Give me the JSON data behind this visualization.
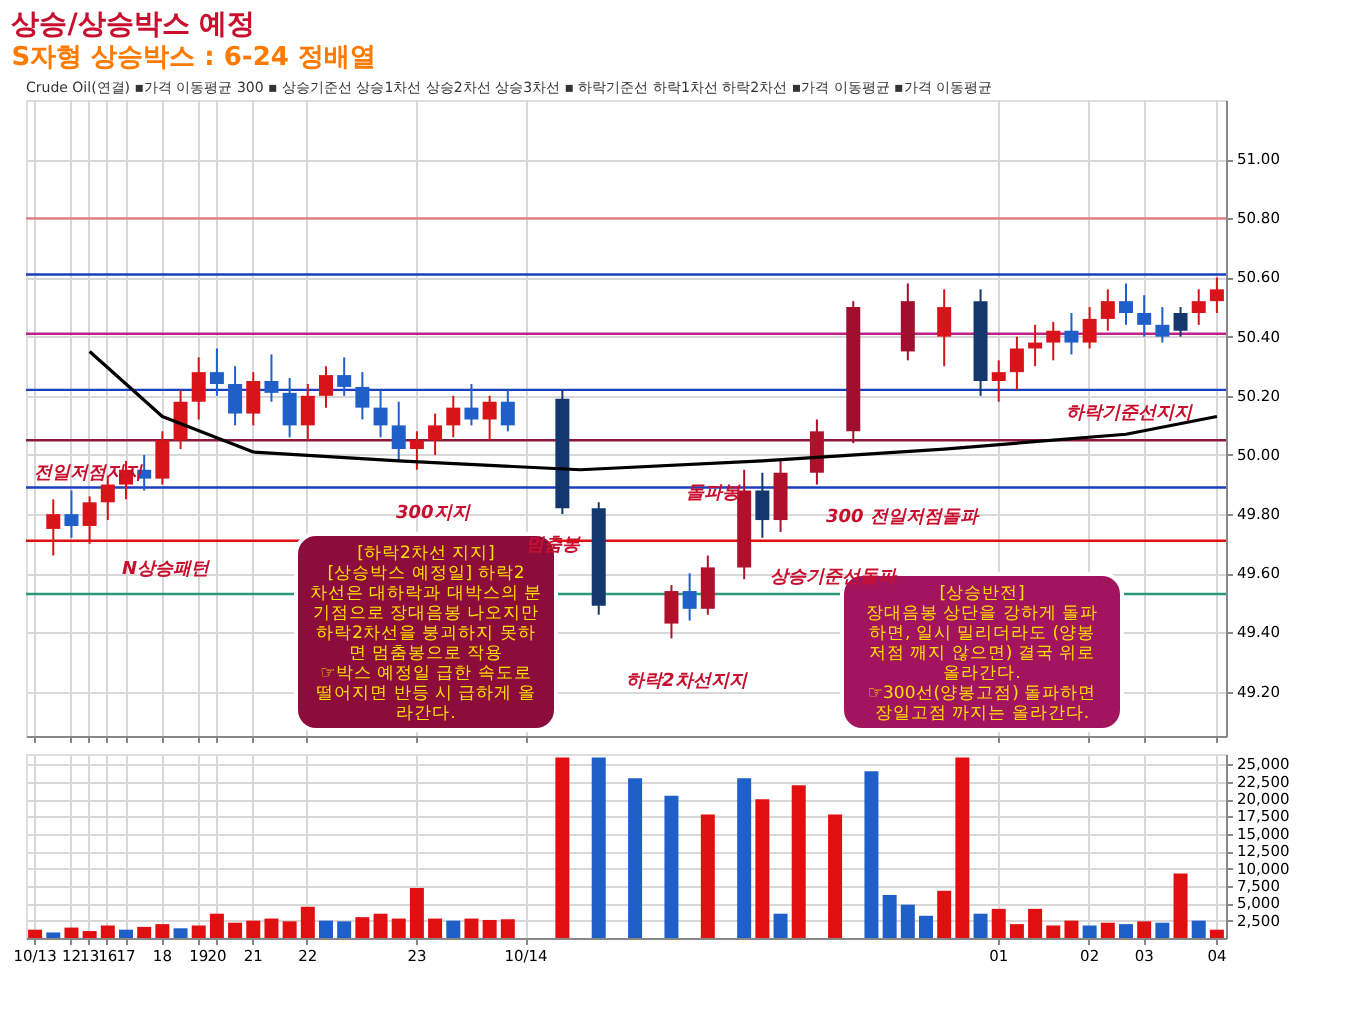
{
  "chart_data": [
    {
      "type": "candlestick",
      "title": "상승/상승박스 예정",
      "subtitle": "S자형 상승박스 : 6-24 정배열",
      "categories": [
        null,
        null,
        null,
        null,
        null,
        null,
        null,
        null,
        null,
        null,
        null,
        null,
        null,
        null,
        null,
        null,
        null,
        null,
        null,
        null,
        null,
        null,
        null,
        null,
        null,
        null,
        null,
        null,
        null,
        null,
        null,
        null,
        null,
        null,
        null,
        null,
        null,
        null,
        null,
        null,
        null,
        null,
        null,
        null,
        null,
        null,
        null,
        null,
        null,
        null,
        null,
        null,
        null,
        null,
        null,
        null,
        null,
        null,
        null,
        null,
        null,
        null,
        null,
        null,
        null,
        null
      ],
      "ohlc": [
        null,
        [
          49.75,
          49.85,
          49.66,
          49.8
        ],
        [
          49.8,
          49.88,
          49.72,
          49.76
        ],
        [
          49.76,
          49.86,
          49.7,
          49.84
        ],
        [
          49.84,
          49.93,
          49.78,
          49.9
        ],
        [
          49.9,
          49.98,
          49.85,
          49.95
        ],
        [
          49.95,
          50.0,
          49.88,
          49.92
        ],
        [
          49.92,
          50.08,
          49.9,
          50.05
        ],
        [
          50.05,
          50.22,
          50.02,
          50.18
        ],
        [
          50.18,
          50.33,
          50.12,
          50.28
        ],
        [
          50.28,
          50.36,
          50.2,
          50.24
        ],
        [
          50.24,
          50.3,
          50.1,
          50.14
        ],
        [
          50.14,
          50.28,
          50.1,
          50.25
        ],
        [
          50.25,
          50.34,
          50.18,
          50.21
        ],
        [
          50.21,
          50.26,
          50.06,
          50.1
        ],
        [
          50.1,
          50.24,
          50.05,
          50.2
        ],
        [
          50.2,
          50.3,
          50.16,
          50.27
        ],
        [
          50.27,
          50.33,
          50.2,
          50.23
        ],
        [
          50.23,
          50.28,
          50.12,
          50.16
        ],
        [
          50.16,
          50.22,
          50.06,
          50.1
        ],
        [
          50.1,
          50.18,
          49.98,
          50.02
        ],
        [
          50.02,
          50.08,
          49.95,
          50.05
        ],
        [
          50.05,
          50.14,
          50.0,
          50.1
        ],
        [
          50.1,
          50.2,
          50.06,
          50.16
        ],
        [
          50.16,
          50.24,
          50.1,
          50.12
        ],
        [
          50.12,
          50.2,
          50.05,
          50.18
        ],
        [
          50.18,
          50.22,
          50.08,
          50.1
        ],
        null,
        null,
        [
          50.19,
          50.22,
          49.8,
          49.82
        ],
        null,
        [
          49.82,
          49.84,
          49.46,
          49.49
        ],
        null,
        null,
        null,
        [
          49.43,
          49.56,
          49.38,
          49.54
        ],
        [
          49.54,
          49.6,
          49.44,
          49.48
        ],
        [
          49.48,
          49.66,
          49.46,
          49.62
        ],
        null,
        [
          49.62,
          49.95,
          49.58,
          49.88
        ],
        [
          49.88,
          49.94,
          49.72,
          49.78
        ],
        [
          49.78,
          49.98,
          49.74,
          49.94
        ],
        null,
        [
          49.94,
          50.12,
          49.9,
          50.08
        ],
        null,
        [
          50.08,
          50.52,
          50.04,
          50.5
        ],
        null,
        null,
        [
          50.35,
          50.58,
          50.32,
          50.52
        ],
        null,
        [
          50.4,
          50.56,
          50.3,
          50.5
        ],
        null,
        [
          50.52,
          50.56,
          50.2,
          50.25
        ],
        [
          50.25,
          50.32,
          50.18,
          50.28
        ],
        [
          50.28,
          50.4,
          50.22,
          50.36
        ],
        [
          50.36,
          50.44,
          50.3,
          50.38
        ],
        [
          50.38,
          50.45,
          50.32,
          50.42
        ],
        [
          50.42,
          50.48,
          50.34,
          50.38
        ],
        [
          50.38,
          50.5,
          50.36,
          50.46
        ],
        [
          50.46,
          50.56,
          50.42,
          50.52
        ],
        [
          50.52,
          50.58,
          50.44,
          50.48
        ],
        [
          50.48,
          50.54,
          50.4,
          50.44
        ],
        [
          50.44,
          50.5,
          50.38,
          50.4
        ],
        [
          50.42,
          50.5,
          50.4,
          50.48
        ],
        [
          50.48,
          50.56,
          50.44,
          50.52
        ],
        [
          50.52,
          50.6,
          50.48,
          50.56
        ]
      ],
      "colors": [
        null,
        "#d7141a",
        "#1f5fc8",
        "#d7141a",
        "#d7141a",
        "#d7141a",
        "#1f5fc8",
        "#d7141a",
        "#d7141a",
        "#d7141a",
        "#1f5fc8",
        "#1f5fc8",
        "#d7141a",
        "#1f5fc8",
        "#1f5fc8",
        "#d7141a",
        "#d7141a",
        "#1f5fc8",
        "#1f5fc8",
        "#1f5fc8",
        "#1f5fc8",
        "#d7141a",
        "#d7141a",
        "#d7141a",
        "#1f5fc8",
        "#d7141a",
        "#1f5fc8",
        null,
        null,
        "#14386e",
        null,
        "#14386e",
        null,
        null,
        null,
        "#b0102a",
        "#1f5fc8",
        "#b0102a",
        null,
        "#b0102a",
        "#14386e",
        "#b0102a",
        null,
        "#b0102a",
        null,
        "#a0102e",
        null,
        null,
        "#a0102e",
        null,
        "#d7141a",
        null,
        "#14386e",
        "#d7141a",
        "#d7141a",
        "#d7141a",
        "#d7141a",
        "#1f5fc8",
        "#d7141a",
        "#d7141a",
        "#1f5fc8",
        "#1f5fc8",
        "#1f5fc8",
        "#14386e",
        "#d7141a",
        "#d7141a"
      ],
      "series": [
        {
          "type": "line",
          "color": "#000000",
          "values": [
            null,
            null,
            null,
            50.35,
            null,
            null,
            null,
            50.13,
            null,
            null,
            null,
            null,
            50.01,
            null,
            null,
            null,
            null,
            null,
            null,
            null,
            49.98,
            null,
            null,
            null,
            null,
            null,
            null,
            null,
            null,
            null,
            49.95,
            null,
            null,
            null,
            null,
            null,
            null,
            null,
            null,
            null,
            49.98,
            null,
            null,
            null,
            null,
            null,
            null,
            null,
            null,
            null,
            50.02,
            null,
            null,
            null,
            null,
            null,
            null,
            null,
            null,
            null,
            50.07,
            null,
            null,
            null,
            null,
            50.13
          ]
        }
      ],
      "ref_lines": [
        {
          "axis": "y",
          "value": 50.8,
          "color": "#e07a80"
        },
        {
          "axis": "y",
          "value": 50.61,
          "color": "#1a3fbf"
        },
        {
          "axis": "y",
          "value": 50.41,
          "color": "#c0208a"
        },
        {
          "axis": "y",
          "value": 50.22,
          "color": "#1a3fbf"
        },
        {
          "axis": "y",
          "value": 50.05,
          "color": "#8b1a3a"
        },
        {
          "axis": "y",
          "value": 49.89,
          "color": "#1a3fbf"
        },
        {
          "axis": "y",
          "value": 49.71,
          "color": "#e01010"
        },
        {
          "axis": "y",
          "value": 49.53,
          "color": "#2a9a7a"
        }
      ],
      "ylim": [
        49.05,
        51.2
      ],
      "yticks": [
        {
          "value": 49.2,
          "label": "49.20"
        },
        {
          "value": 49.4,
          "label": "49.40"
        },
        {
          "value": 49.6,
          "label": "49.60"
        },
        {
          "value": 49.8,
          "label": "49.80"
        },
        {
          "value": 50.0,
          "label": "50.00"
        },
        {
          "value": 50.2,
          "label": "50.20"
        },
        {
          "value": 50.4,
          "label": "50.40"
        },
        {
          "value": 50.6,
          "label": "50.60"
        },
        {
          "value": 50.8,
          "label": "50.80"
        },
        {
          "value": 51.0,
          "label": "51.00"
        }
      ],
      "tick_labels": "y",
      "grid": true,
      "annotations": [
        "Crude Oil(연결) ▪가격 이동평균 300 ▪ 상승기준선 상승1차선 상승2차선 상승3차선 ▪ 하락기준선 하락1차선 하락2차선 ▪가격 이동평균 ▪가격 이동평균",
        "[하락2차선 지지]\n[상승박스 예정일] 하락2\n차선은 대하락과 대박스의 분\n기점으로 장대음봉 나오지만\n하락2차선을 붕괴하지 못하\n면 멈춤봉으로 작용\n☞박스 예정일 급한 속도로\n떨어지면 반등 시 급하게 올\n라간다.",
        "[상승반전]\n장대음봉 상단을 강하게 돌파\n하면, 일시 밀리더라도 (양봉\n저점 깨지 않으면) 결국 위로\n올라간다.\n☞300선(양봉고점) 돌파하면\n장일고점 까지는 올라간다.",
        "전일저점지지",
        "N상승패턴",
        "300지지",
        "멈춤봉",
        "하락2차선지지",
        "돌파봉",
        "상승기준선돌파",
        "300 전일저점돌파",
        "하락기준선지지"
      ]
    },
    {
      "type": "bar",
      "categories": [
        "10/13",
        null,
        "12",
        "13",
        "16",
        "17",
        null,
        "18",
        null,
        "19",
        "20",
        null,
        "21",
        null,
        null,
        "22",
        null,
        null,
        null,
        null,
        null,
        "23",
        null,
        null,
        null,
        null,
        null,
        "10/14",
        null,
        null,
        null,
        null,
        null,
        null,
        null,
        null,
        null,
        null,
        null,
        null,
        null,
        null,
        null,
        null,
        null,
        null,
        null,
        null,
        null,
        null,
        null,
        null,
        null,
        "01",
        null,
        null,
        null,
        null,
        "02",
        null,
        null,
        "03",
        null,
        null,
        null,
        "04"
      ],
      "values": [
        1200,
        800,
        1500,
        1000,
        1800,
        1200,
        1600,
        2000,
        1400,
        1800,
        3500,
        2200,
        2500,
        2800,
        2400,
        4500,
        2500,
        2400,
        3000,
        3500,
        2800,
        7200,
        2800,
        2500,
        2800,
        2600,
        2700,
        null,
        null,
        26000,
        null,
        26000,
        null,
        23000,
        null,
        20500,
        null,
        17800,
        null,
        23000,
        20000,
        3500,
        22000,
        null,
        17800,
        null,
        24000,
        6200,
        4800,
        3200,
        6800,
        26000,
        3500,
        4200,
        2000,
        4200,
        1800,
        2500,
        1800,
        2200,
        2000,
        2400,
        2200,
        9300,
        2500,
        1200
      ],
      "colors": [
        "#e01010",
        "#1f5fc8",
        "#e01010",
        "#e01010",
        "#e01010",
        "#1f5fc8",
        "#e01010",
        "#e01010",
        "#1f5fc8",
        "#e01010",
        "#e01010",
        "#e01010",
        "#e01010",
        "#e01010",
        "#e01010",
        "#e01010",
        "#1f5fc8",
        "#1f5fc8",
        "#e01010",
        "#e01010",
        "#e01010",
        "#e01010",
        "#e01010",
        "#1f5fc8",
        "#e01010",
        "#e01010",
        "#e01010",
        null,
        null,
        "#e01010",
        null,
        "#1f5fc8",
        null,
        "#1f5fc8",
        null,
        "#1f5fc8",
        null,
        "#e01010",
        null,
        "#1f5fc8",
        "#e01010",
        "#1f5fc8",
        "#e01010",
        null,
        "#e01010",
        null,
        "#1f5fc8",
        "#1f5fc8",
        "#1f5fc8",
        "#1f5fc8",
        "#e01010",
        "#e01010",
        "#1f5fc8",
        "#e01010",
        "#e01010",
        "#e01010",
        "#e01010",
        "#e01010",
        "#1f5fc8",
        "#e01010",
        "#1f5fc8",
        "#e01010",
        "#1f5fc8",
        "#e01010",
        "#1f5fc8",
        "#e01010"
      ],
      "ylim": [
        0,
        26500
      ],
      "yticks": [
        {
          "value": 2500,
          "label": "2,500"
        },
        {
          "value": 5000,
          "label": "5,000"
        },
        {
          "value": 7500,
          "label": "7,500"
        },
        {
          "value": 10000,
          "label": "10,000"
        },
        {
          "value": 12500,
          "label": "12,500"
        },
        {
          "value": 15000,
          "label": "15,000"
        },
        {
          "value": 17500,
          "label": "17,500"
        },
        {
          "value": 20000,
          "label": "20,000"
        },
        {
          "value": 22500,
          "label": "22,500"
        },
        {
          "value": 25000,
          "label": "25,000"
        }
      ],
      "grid": true
    }
  ]
}
